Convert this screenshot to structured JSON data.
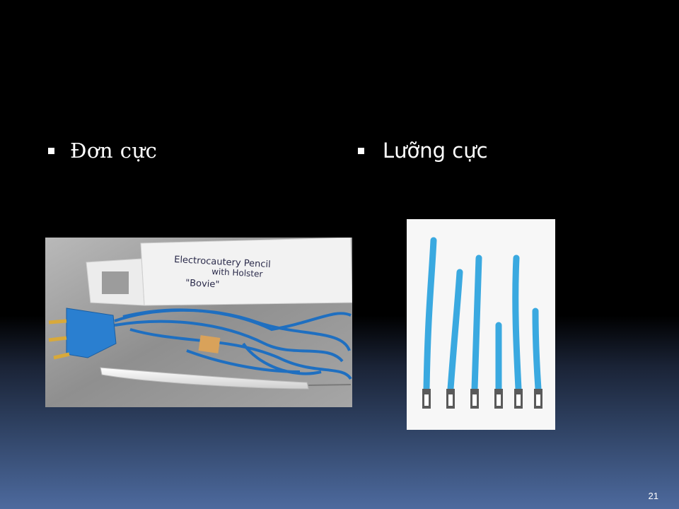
{
  "slide": {
    "bullets": [
      {
        "label": "Đơn cực",
        "icon": "square-bullet-icon"
      },
      {
        "label": "Lưỡng cực",
        "icon": "square-bullet-icon"
      }
    ],
    "images": {
      "monopolar": {
        "handwritten_label": "Electrocautery Pencil with Holster \"Bovie\""
      },
      "bipolar": {}
    },
    "page_number": "21"
  },
  "colors": {
    "background_top": "#000000",
    "background_bottom": "#4d6a9e",
    "text": "#ffffff",
    "cable_blue": "#1f6fc0",
    "tip_blue": "#3aa9e0"
  }
}
